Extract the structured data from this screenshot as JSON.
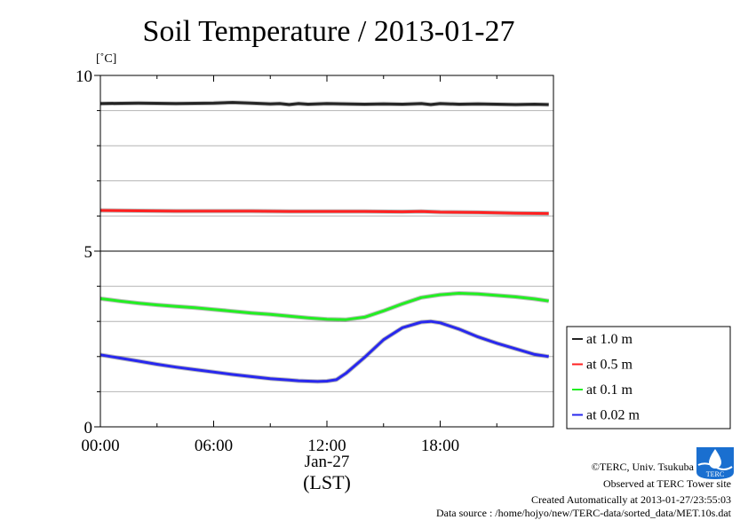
{
  "chart_data": {
    "type": "line",
    "title": "Soil Temperature / 2013-01-27",
    "ylabel": "[˚C]",
    "ylim": [
      0,
      10
    ],
    "yticks": [
      {
        "value": 0,
        "label": "0"
      },
      {
        "value": 5,
        "label": "5"
      },
      {
        "value": 10,
        "label": "10"
      }
    ],
    "ygrid": [
      1,
      2,
      3,
      4,
      6,
      7,
      8,
      9
    ],
    "xlim": [
      0,
      24
    ],
    "xticks": [
      {
        "value": 0,
        "label": "00:00"
      },
      {
        "value": 6,
        "label": "06:00"
      },
      {
        "value": 12,
        "label": "12:00"
      },
      {
        "value": 18,
        "label": "18:00"
      }
    ],
    "xdate_label": "Jan-27",
    "xlabel": "(LST)",
    "grid": true,
    "legend_position": "bottom-right-outside",
    "series": [
      {
        "name": "at 1.0 m",
        "color": "#222222",
        "x": [
          0,
          2,
          4,
          6,
          7,
          8,
          9,
          9.5,
          10,
          10.5,
          11,
          12,
          13,
          14,
          15,
          16,
          17,
          17.5,
          18,
          19,
          20,
          21,
          22,
          23,
          23.75
        ],
        "y": [
          9.2,
          9.21,
          9.2,
          9.21,
          9.23,
          9.21,
          9.19,
          9.2,
          9.17,
          9.2,
          9.18,
          9.2,
          9.19,
          9.18,
          9.19,
          9.18,
          9.2,
          9.17,
          9.2,
          9.18,
          9.19,
          9.18,
          9.17,
          9.18,
          9.17
        ]
      },
      {
        "name": "at 0.5 m",
        "color": "#ff2020",
        "x": [
          0,
          2,
          4,
          6,
          8,
          10,
          12,
          14,
          16,
          17,
          18,
          20,
          22,
          23.75
        ],
        "y": [
          6.16,
          6.15,
          6.14,
          6.14,
          6.14,
          6.13,
          6.13,
          6.13,
          6.12,
          6.13,
          6.11,
          6.1,
          6.08,
          6.07
        ]
      },
      {
        "name": "at 0.1 m",
        "color": "#22ee22",
        "x": [
          0,
          1,
          2,
          3,
          4,
          5,
          6,
          7,
          8,
          9,
          10,
          11,
          12,
          13,
          14,
          15,
          16,
          17,
          18,
          19,
          20,
          21,
          22,
          23,
          23.75
        ],
        "y": [
          3.65,
          3.58,
          3.52,
          3.47,
          3.43,
          3.39,
          3.34,
          3.29,
          3.24,
          3.2,
          3.15,
          3.1,
          3.06,
          3.05,
          3.12,
          3.3,
          3.5,
          3.68,
          3.76,
          3.8,
          3.78,
          3.74,
          3.7,
          3.64,
          3.58
        ]
      },
      {
        "name": "at 0.02 m",
        "color": "#2828ee",
        "x": [
          0,
          1,
          2,
          3,
          4,
          5,
          6,
          7,
          8,
          9,
          10,
          10.5,
          11,
          11.5,
          12,
          12.5,
          13,
          14,
          15,
          16,
          17,
          17.5,
          18,
          19,
          20,
          21,
          22,
          23,
          23.75
        ],
        "y": [
          2.05,
          1.96,
          1.87,
          1.78,
          1.7,
          1.63,
          1.56,
          1.49,
          1.43,
          1.37,
          1.33,
          1.31,
          1.3,
          1.29,
          1.3,
          1.34,
          1.52,
          1.98,
          2.48,
          2.82,
          2.98,
          3.0,
          2.96,
          2.78,
          2.56,
          2.38,
          2.22,
          2.06,
          2.0
        ]
      }
    ]
  },
  "footer": {
    "copyright": "©TERC, Univ. Tsukuba",
    "observed": "Observed at TERC Tower site",
    "created": "Created Automatically at 2013-01-27/23:55:03",
    "source": "Data source : /home/hojyo/new/TERC-data/sorted_data/MET.10s.dat",
    "logo_text": "TERC",
    "logo_color": "#1a6fd0"
  }
}
